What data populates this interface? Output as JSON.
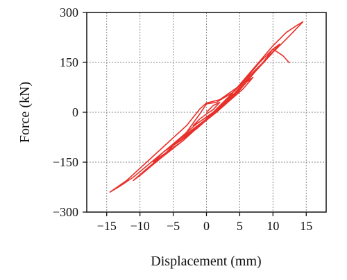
{
  "chart_data": {
    "type": "line",
    "title": "",
    "xlabel": "Displacement (mm)",
    "ylabel": "Force (kN)",
    "xlim": [
      -18,
      18
    ],
    "ylim": [
      -300,
      300
    ],
    "xticks": [
      -15,
      -10,
      -5,
      0,
      5,
      10,
      15
    ],
    "xtick_labels": [
      "−15",
      "−10",
      "−5",
      "0",
      "5",
      "10",
      "15"
    ],
    "yticks": [
      -300,
      -150,
      0,
      150,
      300
    ],
    "ytick_labels": [
      "−300",
      "−150",
      "0",
      "150",
      "300"
    ],
    "grid": true,
    "legend": "none",
    "colors": {
      "series": "#e8302a",
      "axes": "#111111",
      "grid": "#8a8a8a"
    },
    "series": [
      {
        "values": [
          {
            "x": 0.0,
            "y": 0
          },
          {
            "x": 1.0,
            "y": 20
          },
          {
            "x": 2.0,
            "y": 30
          },
          {
            "x": 1.0,
            "y": 8
          },
          {
            "x": 0.0,
            "y": -5
          },
          {
            "x": -1.0,
            "y": -20
          },
          {
            "x": -2.0,
            "y": -40
          },
          {
            "x": -1.0,
            "y": -28
          },
          {
            "x": 0.0,
            "y": -15
          },
          {
            "x": 1.5,
            "y": 5
          },
          {
            "x": 3.0,
            "y": 40
          },
          {
            "x": 4.0,
            "y": 55
          },
          {
            "x": 3.0,
            "y": 35
          },
          {
            "x": 1.5,
            "y": 10
          },
          {
            "x": 0.0,
            "y": -20
          },
          {
            "x": -2.0,
            "y": -50
          },
          {
            "x": -4.0,
            "y": -80
          },
          {
            "x": -5.0,
            "y": -100
          },
          {
            "x": -3.5,
            "y": -80
          },
          {
            "x": -1.5,
            "y": -50
          },
          {
            "x": 0.5,
            "y": -15
          },
          {
            "x": 2.5,
            "y": 20
          },
          {
            "x": 4.5,
            "y": 55
          },
          {
            "x": 6.0,
            "y": 90
          },
          {
            "x": 7.0,
            "y": 105
          },
          {
            "x": 5.5,
            "y": 70
          },
          {
            "x": 3.5,
            "y": 35
          },
          {
            "x": 1.5,
            "y": 0
          },
          {
            "x": -1.0,
            "y": -40
          },
          {
            "x": -3.5,
            "y": -85
          },
          {
            "x": -6.0,
            "y": -120
          },
          {
            "x": -8.0,
            "y": -150
          },
          {
            "x": -6.5,
            "y": -120
          },
          {
            "x": -4.0,
            "y": -85
          },
          {
            "x": -1.5,
            "y": -45
          },
          {
            "x": 1.0,
            "y": -5
          },
          {
            "x": 3.5,
            "y": 40
          },
          {
            "x": 6.0,
            "y": 90
          },
          {
            "x": 8.5,
            "y": 150
          },
          {
            "x": 10.0,
            "y": 190
          },
          {
            "x": 11.0,
            "y": 205
          },
          {
            "x": 9.0,
            "y": 160
          },
          {
            "x": 6.0,
            "y": 100
          },
          {
            "x": 3.0,
            "y": 40
          },
          {
            "x": 0.0,
            "y": -20
          },
          {
            "x": -3.5,
            "y": -85
          },
          {
            "x": -7.0,
            "y": -140
          },
          {
            "x": -10.0,
            "y": -190
          },
          {
            "x": -11.0,
            "y": -205
          },
          {
            "x": -9.0,
            "y": -170
          },
          {
            "x": -6.0,
            "y": -120
          },
          {
            "x": -3.0,
            "y": -60
          },
          {
            "x": -1.0,
            "y": -5
          },
          {
            "x": 0.0,
            "y": 25
          },
          {
            "x": 1.5,
            "y": 30
          },
          {
            "x": 4.0,
            "y": 60
          },
          {
            "x": 7.0,
            "y": 130
          },
          {
            "x": 10.0,
            "y": 200
          },
          {
            "x": 12.0,
            "y": 240
          },
          {
            "x": 13.5,
            "y": 260
          },
          {
            "x": 14.5,
            "y": 272
          },
          {
            "x": 12.5,
            "y": 230
          },
          {
            "x": 10.0,
            "y": 180
          },
          {
            "x": 7.0,
            "y": 115
          },
          {
            "x": 5.0,
            "y": 75
          },
          {
            "x": 3.0,
            "y": 30
          },
          {
            "x": 1.0,
            "y": 0
          },
          {
            "x": -1.5,
            "y": -35
          },
          {
            "x": -5.0,
            "y": -95
          },
          {
            "x": -8.0,
            "y": -145
          },
          {
            "x": -11.0,
            "y": -195
          },
          {
            "x": -13.0,
            "y": -222
          },
          {
            "x": -14.5,
            "y": -240
          },
          {
            "x": -12.0,
            "y": -205
          },
          {
            "x": -9.0,
            "y": -150
          },
          {
            "x": -6.0,
            "y": -95
          },
          {
            "x": -3.0,
            "y": -40
          },
          {
            "x": -1.0,
            "y": 10
          },
          {
            "x": 0.0,
            "y": 28
          },
          {
            "x": 2.0,
            "y": 38
          },
          {
            "x": 5.0,
            "y": 80
          },
          {
            "x": 8.0,
            "y": 150
          },
          {
            "x": 10.0,
            "y": 190
          },
          {
            "x": 11.5,
            "y": 170
          },
          {
            "x": 12.5,
            "y": 148
          }
        ]
      }
    ]
  }
}
